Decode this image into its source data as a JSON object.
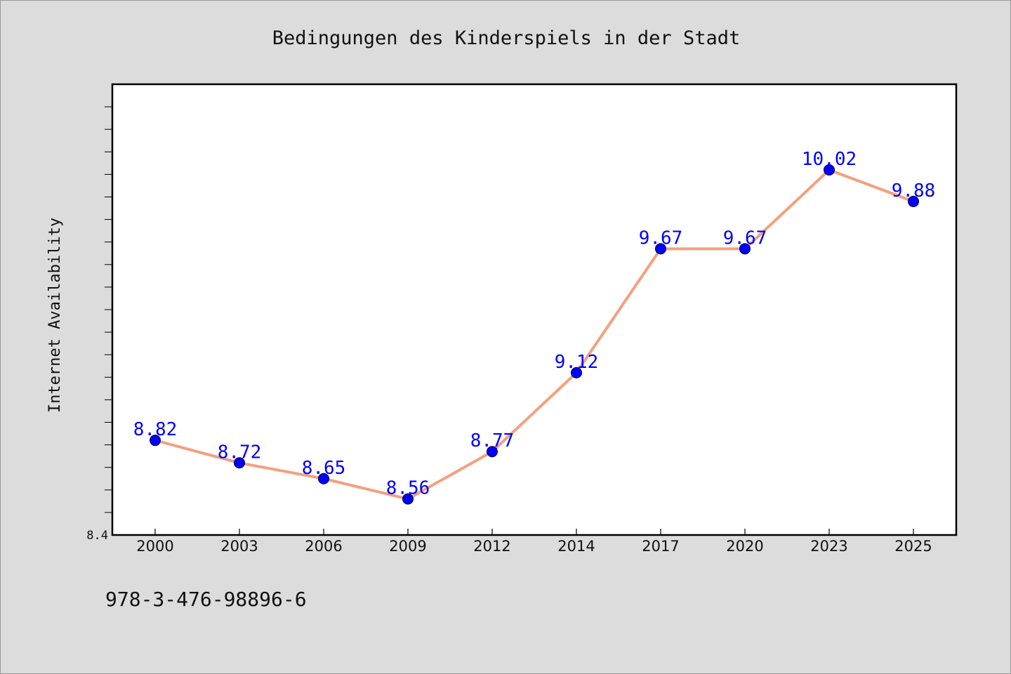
{
  "chart_data": {
    "type": "line",
    "title": "Bedingungen des Kinderspiels in der Stadt",
    "xlabel": "",
    "ylabel": "Internet Availability",
    "categories": [
      "2000",
      "2003",
      "2006",
      "2009",
      "2012",
      "2014",
      "2017",
      "2020",
      "2023",
      "2025"
    ],
    "series": [
      {
        "values": [
          8.82,
          8.72,
          8.65,
          8.56,
          8.77,
          9.12,
          9.67,
          9.67,
          10.02,
          9.88
        ]
      }
    ],
    "data_labels": [
      "8.82",
      "8.72",
      "8.65",
      "8.56",
      "8.77",
      "9.12",
      "9.67",
      "9.67",
      "10.02",
      "9.88"
    ],
    "ylim": [
      8.4,
      10.4
    ],
    "ytick_labels": [
      {
        "value": 8.4,
        "label": "8.4"
      }
    ],
    "grid": false,
    "legend": "none",
    "colors": {
      "line": "#f4a07e",
      "marker": "#0000ff",
      "label": "#0000ff",
      "plot_bg": "#ffffff",
      "page_bg": "#dcdcdc"
    }
  },
  "footer": {
    "isbn": "978-3-476-98896-6"
  }
}
